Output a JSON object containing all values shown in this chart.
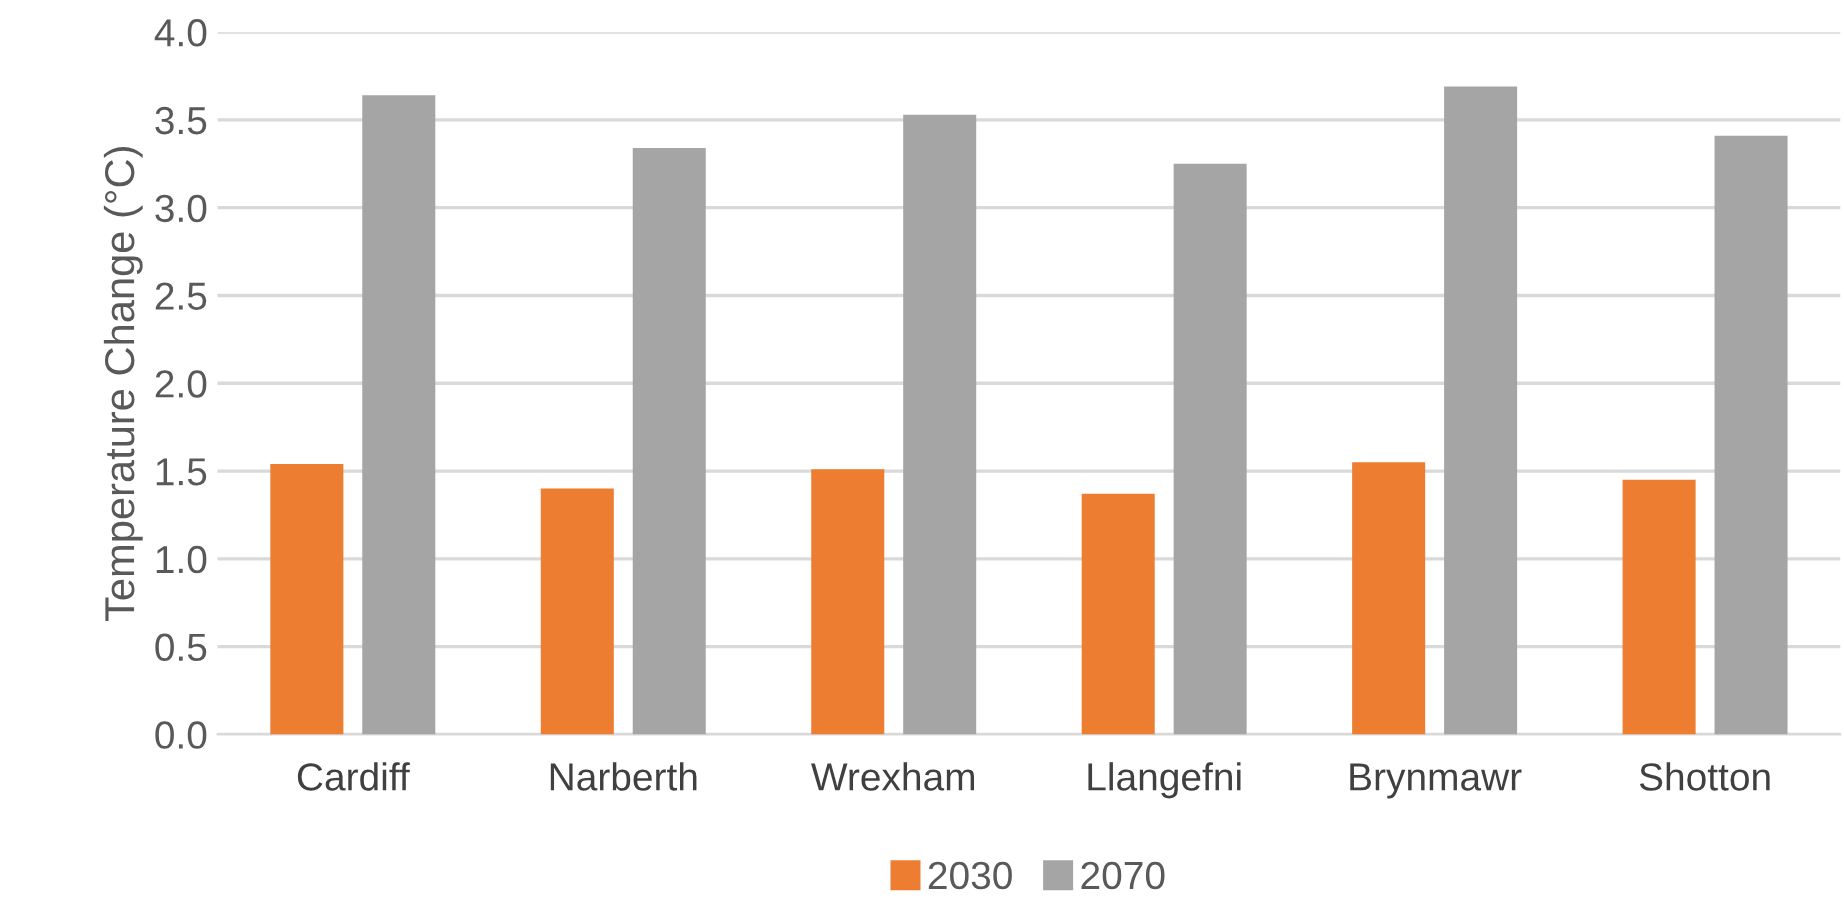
{
  "chart_data": {
    "type": "bar",
    "ylabel": "Temperature Change (°C)",
    "categories": [
      "Cardiff",
      "Narberth",
      "Wrexham",
      "Llangefni",
      "Brynmawr",
      "Shotton"
    ],
    "series": [
      {
        "name": "2030",
        "color": "#ed7d31",
        "values": [
          1.54,
          1.4,
          1.51,
          1.37,
          1.55,
          1.45
        ]
      },
      {
        "name": "2070",
        "color": "#a5a5a5",
        "values": [
          3.64,
          3.34,
          3.53,
          3.25,
          3.69,
          3.41
        ]
      }
    ],
    "ylim": [
      0,
      4
    ],
    "yticks": [
      {
        "value": 0,
        "label": "0.0"
      },
      {
        "value": 0.5,
        "label": "0.5"
      },
      {
        "value": 1,
        "label": "1.0"
      },
      {
        "value": 1.5,
        "label": "1.5"
      },
      {
        "value": 2,
        "label": "2.0"
      },
      {
        "value": 2.5,
        "label": "2.5"
      },
      {
        "value": 3,
        "label": "3.0"
      },
      {
        "value": 3.5,
        "label": "3.5"
      },
      {
        "value": 4,
        "label": "4.0"
      }
    ],
    "grid": "y",
    "legend": "bottom"
  }
}
